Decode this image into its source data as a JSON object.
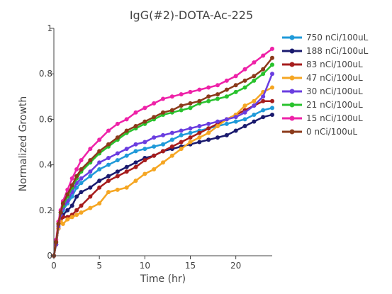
{
  "chart_data": {
    "type": "line",
    "title": "IgG(#2)-DOTA-Ac-225",
    "xlabel": "Time (hr)",
    "ylabel": "Normalized Growth",
    "xlim": [
      0,
      24
    ],
    "ylim": [
      0,
      1
    ],
    "xticks": [
      "0",
      "5",
      "10",
      "15",
      "20"
    ],
    "yticks": [
      "0",
      "0.2",
      "0.4",
      "0.6",
      "0.8",
      "1"
    ],
    "grid": false,
    "legend_position": "right",
    "series": [
      {
        "name": "750  nCi/100uL",
        "color": "#1f9ad9",
        "x": [
          0,
          0.25,
          0.5,
          0.75,
          1,
          1.5,
          2,
          2.5,
          3,
          4,
          5,
          6,
          7,
          8,
          9,
          10,
          11,
          12,
          13,
          14,
          15,
          16,
          17,
          18,
          19,
          20,
          21,
          22,
          23,
          24
        ],
        "y": [
          0,
          0.05,
          0.12,
          0.17,
          0.2,
          0.23,
          0.26,
          0.3,
          0.32,
          0.35,
          0.38,
          0.4,
          0.42,
          0.44,
          0.46,
          0.47,
          0.48,
          0.49,
          0.51,
          0.53,
          0.54,
          0.55,
          0.56,
          0.57,
          0.58,
          0.59,
          0.6,
          0.62,
          0.64,
          0.65
        ]
      },
      {
        "name": "188  nCi/100uL",
        "color": "#1a1a6e",
        "x": [
          0,
          0.25,
          0.5,
          0.75,
          1,
          1.5,
          2,
          2.5,
          3,
          4,
          5,
          6,
          7,
          8,
          9,
          10,
          11,
          12,
          13,
          14,
          15,
          16,
          17,
          18,
          19,
          20,
          21,
          22,
          23,
          24
        ],
        "y": [
          0,
          0.05,
          0.12,
          0.16,
          0.18,
          0.2,
          0.22,
          0.26,
          0.28,
          0.3,
          0.33,
          0.35,
          0.37,
          0.39,
          0.41,
          0.43,
          0.44,
          0.46,
          0.47,
          0.48,
          0.49,
          0.5,
          0.51,
          0.52,
          0.53,
          0.55,
          0.57,
          0.59,
          0.61,
          0.62
        ]
      },
      {
        "name": "83  nCi/100uL",
        "color": "#a61c1c",
        "x": [
          0,
          0.25,
          0.5,
          0.75,
          1,
          1.5,
          2,
          2.5,
          3,
          4,
          5,
          6,
          7,
          8,
          9,
          10,
          11,
          12,
          13,
          14,
          15,
          16,
          17,
          18,
          19,
          20,
          21,
          22,
          23,
          24
        ],
        "y": [
          0,
          0.05,
          0.12,
          0.16,
          0.17,
          0.17,
          0.18,
          0.2,
          0.22,
          0.26,
          0.3,
          0.33,
          0.35,
          0.37,
          0.39,
          0.42,
          0.44,
          0.46,
          0.48,
          0.5,
          0.52,
          0.54,
          0.56,
          0.58,
          0.6,
          0.62,
          0.64,
          0.66,
          0.68,
          0.68
        ]
      },
      {
        "name": "47  nCi/100uL",
        "color": "#f5a623",
        "x": [
          0,
          0.25,
          0.5,
          0.75,
          1,
          1.5,
          2,
          2.5,
          3,
          4,
          5,
          6,
          7,
          8,
          9,
          10,
          11,
          12,
          13,
          14,
          15,
          16,
          17,
          18,
          19,
          20,
          21,
          22,
          23,
          24
        ],
        "y": [
          0,
          0.05,
          0.12,
          0.15,
          0.14,
          0.16,
          0.17,
          0.18,
          0.19,
          0.21,
          0.23,
          0.28,
          0.29,
          0.3,
          0.33,
          0.36,
          0.38,
          0.41,
          0.44,
          0.47,
          0.5,
          0.52,
          0.54,
          0.57,
          0.6,
          0.62,
          0.66,
          0.68,
          0.72,
          0.74
        ]
      },
      {
        "name": "30  nCi/100uL",
        "color": "#6a3de0",
        "x": [
          0,
          0.25,
          0.5,
          0.75,
          1,
          1.5,
          2,
          2.5,
          3,
          4,
          5,
          6,
          7,
          8,
          9,
          10,
          11,
          12,
          13,
          14,
          15,
          16,
          17,
          18,
          19,
          20,
          21,
          22,
          23,
          24
        ],
        "y": [
          0,
          0.05,
          0.13,
          0.18,
          0.21,
          0.24,
          0.28,
          0.32,
          0.34,
          0.37,
          0.41,
          0.43,
          0.45,
          0.47,
          0.49,
          0.5,
          0.52,
          0.53,
          0.54,
          0.55,
          0.56,
          0.57,
          0.58,
          0.59,
          0.6,
          0.61,
          0.63,
          0.66,
          0.7,
          0.8
        ]
      },
      {
        "name": "21  nCi/100uL",
        "color": "#28c22d",
        "x": [
          0,
          0.25,
          0.5,
          0.75,
          1,
          1.5,
          2,
          2.5,
          3,
          4,
          5,
          6,
          7,
          8,
          9,
          10,
          11,
          12,
          13,
          14,
          15,
          16,
          17,
          18,
          19,
          20,
          21,
          22,
          23,
          24
        ],
        "y": [
          0,
          0.06,
          0.14,
          0.19,
          0.22,
          0.26,
          0.3,
          0.34,
          0.37,
          0.41,
          0.45,
          0.48,
          0.51,
          0.54,
          0.56,
          0.58,
          0.6,
          0.62,
          0.63,
          0.64,
          0.65,
          0.67,
          0.68,
          0.69,
          0.7,
          0.72,
          0.74,
          0.77,
          0.8,
          0.84
        ]
      },
      {
        "name": "15  nCi/100uL",
        "color": "#ee22a8",
        "x": [
          0,
          0.25,
          0.5,
          0.75,
          1,
          1.5,
          2,
          2.5,
          3,
          4,
          5,
          6,
          7,
          8,
          9,
          10,
          11,
          12,
          13,
          14,
          15,
          16,
          17,
          18,
          19,
          20,
          21,
          22,
          23,
          24
        ],
        "y": [
          0,
          0.07,
          0.15,
          0.2,
          0.24,
          0.29,
          0.34,
          0.38,
          0.42,
          0.47,
          0.51,
          0.55,
          0.58,
          0.6,
          0.63,
          0.65,
          0.67,
          0.69,
          0.7,
          0.71,
          0.72,
          0.73,
          0.74,
          0.75,
          0.77,
          0.79,
          0.82,
          0.85,
          0.88,
          0.91
        ]
      },
      {
        "name": "0  nCi/100uL",
        "color": "#8b3a1a",
        "x": [
          0,
          0.25,
          0.5,
          0.75,
          1,
          1.5,
          2,
          2.5,
          3,
          4,
          5,
          6,
          7,
          8,
          9,
          10,
          11,
          12,
          13,
          14,
          15,
          16,
          17,
          18,
          19,
          20,
          21,
          22,
          23,
          24
        ],
        "y": [
          0,
          0.06,
          0.14,
          0.19,
          0.23,
          0.27,
          0.31,
          0.35,
          0.38,
          0.42,
          0.46,
          0.49,
          0.52,
          0.55,
          0.57,
          0.59,
          0.61,
          0.63,
          0.64,
          0.66,
          0.67,
          0.68,
          0.7,
          0.71,
          0.73,
          0.75,
          0.77,
          0.79,
          0.82,
          0.87
        ]
      }
    ]
  }
}
